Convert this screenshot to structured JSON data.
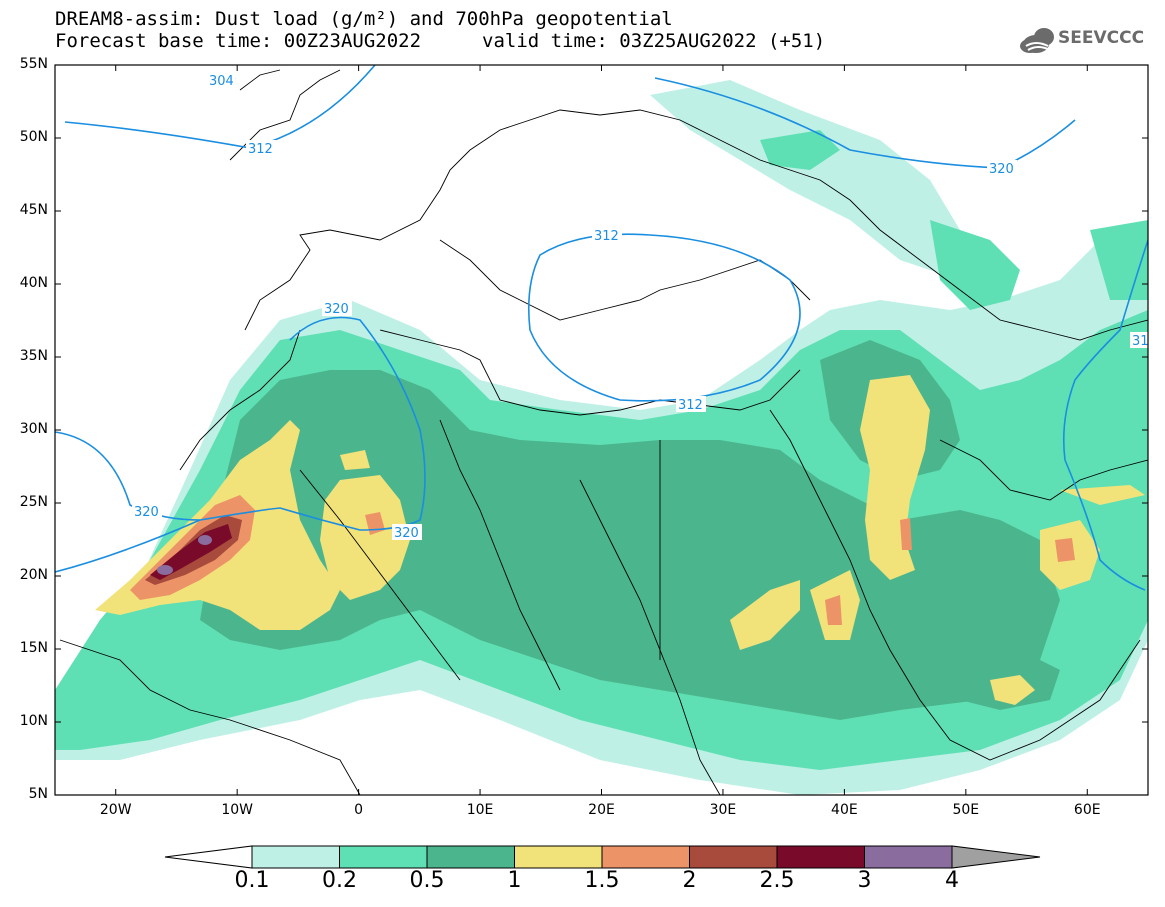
{
  "header": {
    "title_line1": "DREAM8-assim: Dust load (g/m²) and 700hPa geopotential",
    "title_line2": "Forecast base time: 00Z23AUG2022",
    "valid_time": "valid time: 03Z25AUG2022 (+51)",
    "logo_text": "SEEVCCC"
  },
  "map": {
    "lat_labels": [
      "55N",
      "50N",
      "45N",
      "40N",
      "35N",
      "30N",
      "25N",
      "20N",
      "15N",
      "10N",
      "5N"
    ],
    "lon_labels": [
      "20W",
      "10W",
      "0",
      "10E",
      "20E",
      "30E",
      "40E",
      "50E",
      "60E"
    ],
    "contour_labels": [
      "304",
      "312",
      "320",
      "312",
      "312",
      "320",
      "320",
      "320",
      "31"
    ],
    "contour_color": "#1a8ee0"
  },
  "colorbar": {
    "labels": [
      "0.1",
      "0.2",
      "0.5",
      "1",
      "1.5",
      "2",
      "2.5",
      "3",
      "4"
    ],
    "colors": [
      "#ffffff",
      "#bff0e6",
      "#5fe0b4",
      "#4bb58d",
      "#f2e27a",
      "#ec9467",
      "#a84a3c",
      "#7a0a2a",
      "#8a6c9e",
      "#a0a0a0"
    ]
  }
}
